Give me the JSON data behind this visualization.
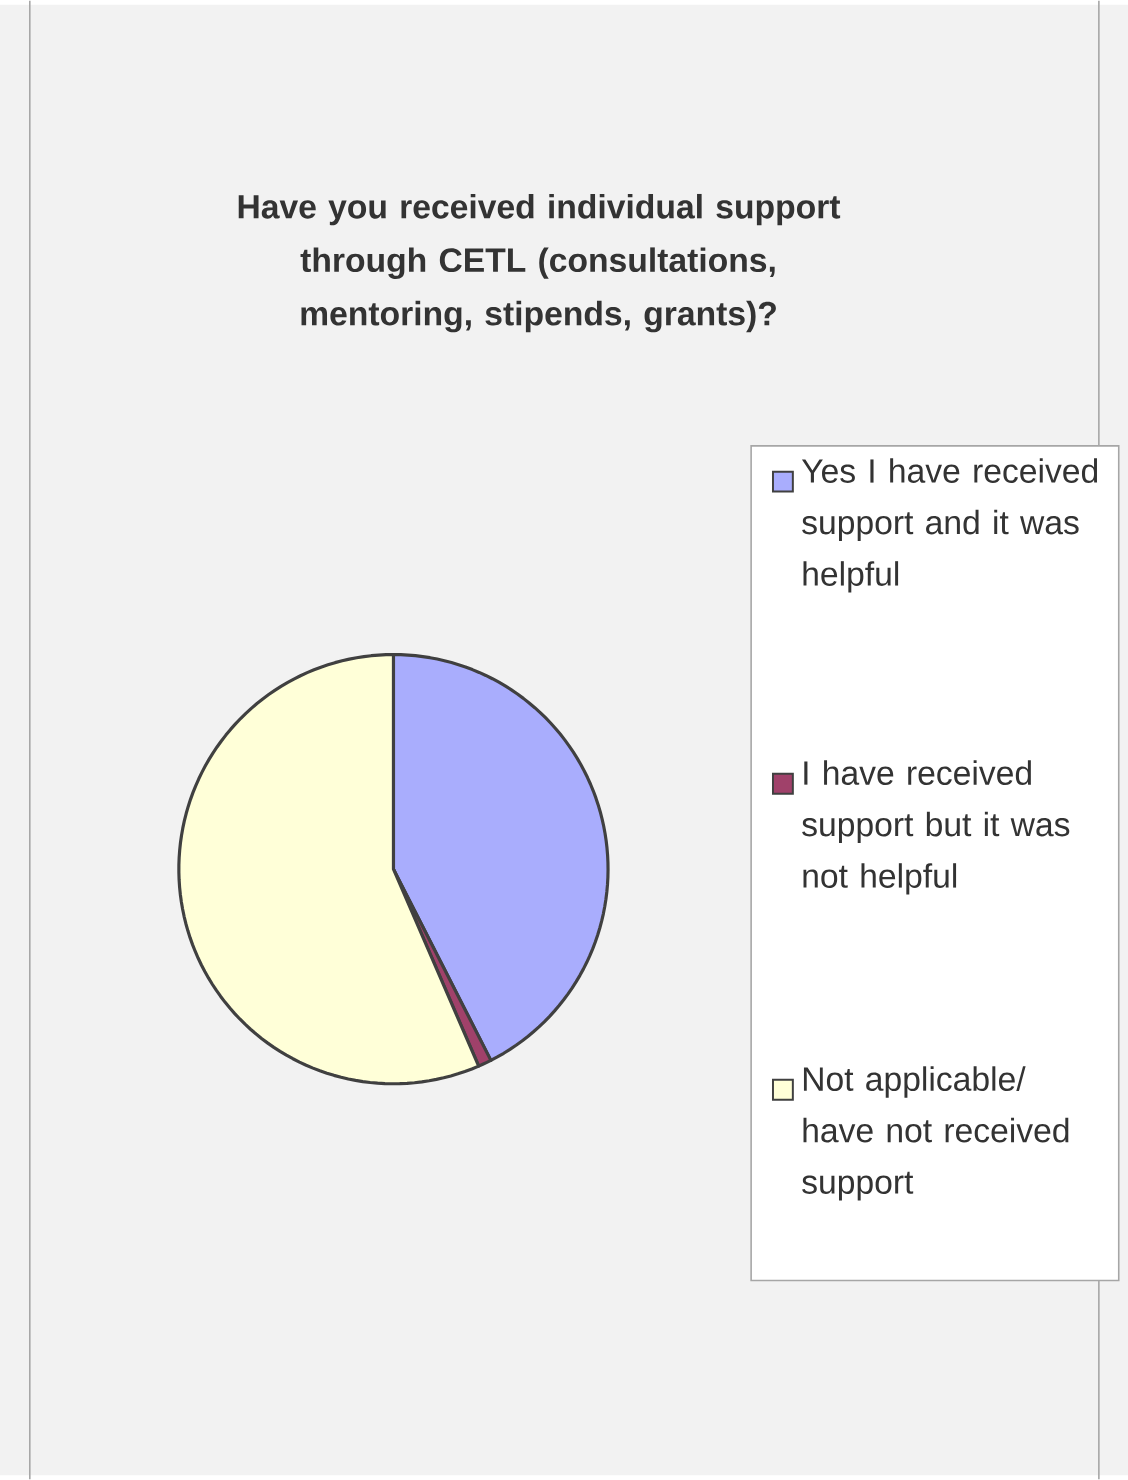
{
  "chart_data": {
    "type": "pie",
    "title": "Have you received individual support through CETL (consultations, mentoring, stipends, grants)?",
    "categories": [
      "Yes I have received support and it was helpful",
      "I have received support but it was not helpful",
      "Not applicable/ have not received support"
    ],
    "values": [
      42.5,
      1,
      56.5
    ],
    "colors": [
      "#a9adfd",
      "#a0416a",
      "#ffffd8"
    ],
    "legend": "right"
  }
}
